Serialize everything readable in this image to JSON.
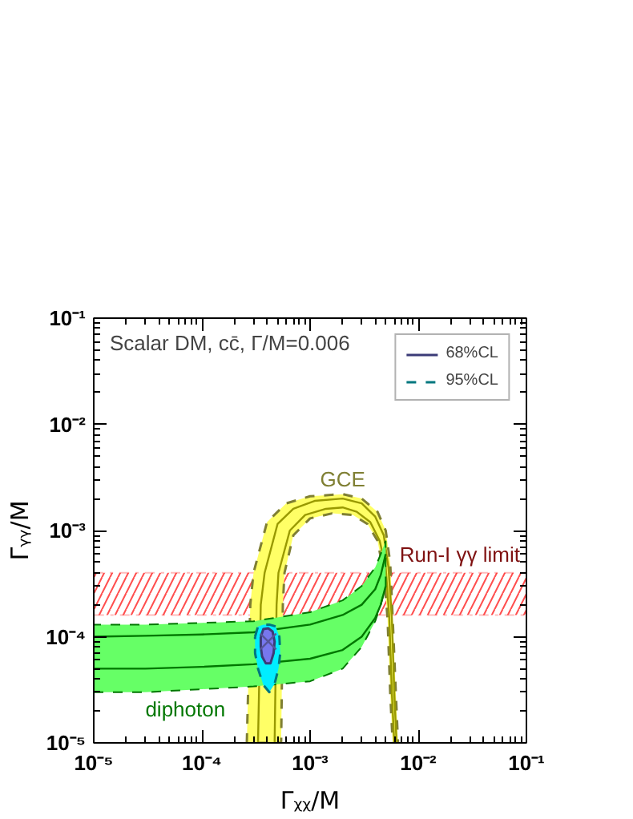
{
  "chart_data": {
    "type": "area",
    "title": "Scalar DM, cc̄, Γ/M=0.006",
    "xlabel": "Γᵪᵪ/M",
    "ylabel": "Γᵧᵧ/M",
    "log": "xy",
    "grid": false,
    "legend": "top right",
    "xlim": [
      1e-05,
      0.1
    ],
    "ylim": [
      1e-05,
      0.1
    ],
    "xticks": [
      {
        "value": 1e-05,
        "label": "10⁻⁵"
      },
      {
        "value": 0.0001,
        "label": "10⁻⁴"
      },
      {
        "value": 0.001,
        "label": "10⁻³"
      },
      {
        "value": 0.01,
        "label": "10⁻²"
      },
      {
        "value": 0.1,
        "label": "10⁻¹"
      }
    ],
    "yticks": [
      {
        "value": 1e-05,
        "label": "10⁻⁵"
      },
      {
        "value": 0.0001,
        "label": "10⁻⁴"
      },
      {
        "value": 0.001,
        "label": "10⁻³"
      },
      {
        "value": 0.01,
        "label": "10⁻²"
      },
      {
        "value": 0.1,
        "label": "10⁻¹"
      }
    ],
    "bands": [
      {
        "axis": "y",
        "from": 0.00016,
        "to": 0.0004,
        "label": "Run-I γγ limit",
        "color": "#ff2222"
      }
    ],
    "annotations": [
      {
        "text": "GCE",
        "x": 0.002,
        "y": 0.0022
      },
      {
        "text": "diphoton",
        "x": 3e-05,
        "y": 3e-05
      }
    ],
    "series": [
      {
        "color": "#ffff66",
        "line_style": "dashed",
        "x": [
          0.00026,
          0.00028,
          0.0003,
          0.0004,
          0.0006,
          0.001,
          0.002,
          0.003,
          0.0042,
          0.005,
          0.0055,
          0.0058,
          0.0062,
          0.0065,
          0.0058,
          0.0055,
          0.0052,
          0.0048,
          0.0042,
          0.0034,
          0.0025,
          0.0016,
          0.001,
          0.0007,
          0.00058,
          0.00056,
          0.00054
        ],
        "values": [
          1e-05,
          0.0002,
          0.0004,
          0.0012,
          0.0018,
          0.0021,
          0.0022,
          0.002,
          0.0015,
          0.001,
          0.0005,
          0.00015,
          3e-05,
          1e-05,
          1e-05,
          3e-05,
          0.00015,
          0.0004,
          0.0008,
          0.00115,
          0.0014,
          0.00145,
          0.0013,
          0.0009,
          0.0004,
          0.0002,
          1e-05
        ]
      },
      {
        "type": "line",
        "color": "#999900",
        "x": [
          0.00033,
          0.00035,
          0.00038,
          0.0005,
          0.0007,
          0.0011,
          0.002,
          0.003,
          0.004,
          0.0048,
          0.0053,
          0.0057,
          0.006,
          0.0063
        ],
        "values": [
          1e-05,
          0.0002,
          0.0004,
          0.00115,
          0.0016,
          0.0019,
          0.002,
          0.0018,
          0.00135,
          0.0009,
          0.00045,
          0.00015,
          3e-05,
          1e-05
        ]
      },
      {
        "type": "line",
        "color": "#999900",
        "x": [
          0.00047,
          0.00049,
          0.00051,
          0.00065,
          0.0009,
          0.0014,
          0.002,
          0.0027,
          0.0036,
          0.0044,
          0.005,
          0.0054,
          0.0057,
          0.006
        ],
        "values": [
          1e-05,
          0.0002,
          0.0004,
          0.001,
          0.0014,
          0.0016,
          0.00165,
          0.0015,
          0.0012,
          0.0008,
          0.00045,
          0.00015,
          3e-05,
          1e-05
        ]
      },
      {
        "type": "line",
        "color": "#007700",
        "x": [
          1e-05,
          3e-05,
          0.0001,
          0.0003,
          0.001,
          0.002,
          0.003,
          0.004,
          0.0045,
          0.005
        ],
        "values": [
          0.0001,
          0.000102,
          0.000105,
          0.00011,
          0.00013,
          0.00016,
          0.0002,
          0.00028,
          0.00038,
          0.0006
        ],
        "lower": [
          3e-05,
          3e-05,
          3.2e-05,
          3.4e-05,
          3.8e-05,
          5e-05,
          8e-05,
          0.00014,
          0.0002,
          0.0003
        ],
        "upper": [
          0.00013,
          0.00013,
          0.000135,
          0.00014,
          0.00017,
          0.00022,
          0.0003,
          0.00045,
          0.0006,
          0.0008
        ]
      },
      {
        "type": "line",
        "color": "#007700",
        "x": [
          1e-05,
          3e-05,
          0.0001,
          0.0003,
          0.001,
          0.002,
          0.003,
          0.004,
          0.0045,
          0.005
        ],
        "values": [
          5e-05,
          5e-05,
          5.2e-05,
          5.5e-05,
          6.2e-05,
          7.5e-05,
          0.0001,
          0.00015,
          0.0002,
          0.0003
        ]
      },
      {
        "name": "95%CL",
        "color": "#00eeff",
        "line_style": "dashed",
        "x": [
          0.00031,
          0.00033,
          0.00037,
          0.00042,
          0.00048,
          0.00052,
          0.00053,
          0.00051,
          0.00047,
          0.00042,
          0.00037,
          0.00033,
          0.00031
        ],
        "values": [
          0.0001,
          0.000125,
          0.00013,
          0.00013,
          0.000125,
          0.0001,
          7e-05,
          5e-05,
          3.6e-05,
          3e-05,
          3.5e-05,
          5e-05,
          7e-05
        ]
      },
      {
        "name": "68%CL",
        "color": "#7777ee",
        "line_style": "solid",
        "x": [
          0.00035,
          0.00037,
          0.00041,
          0.00045,
          0.00047,
          0.00046,
          0.00043,
          0.00039,
          0.00036,
          0.00035
        ],
        "values": [
          0.0001,
          0.000118,
          0.00012,
          0.000112,
          9e-05,
          7e-05,
          5.6e-05,
          5.6e-05,
          6.5e-05,
          8e-05
        ]
      },
      {
        "type": "scatter",
        "marker": "cross",
        "color": "#555599",
        "x": [
          0.00041
        ],
        "values": [
          9e-05
        ]
      }
    ]
  }
}
